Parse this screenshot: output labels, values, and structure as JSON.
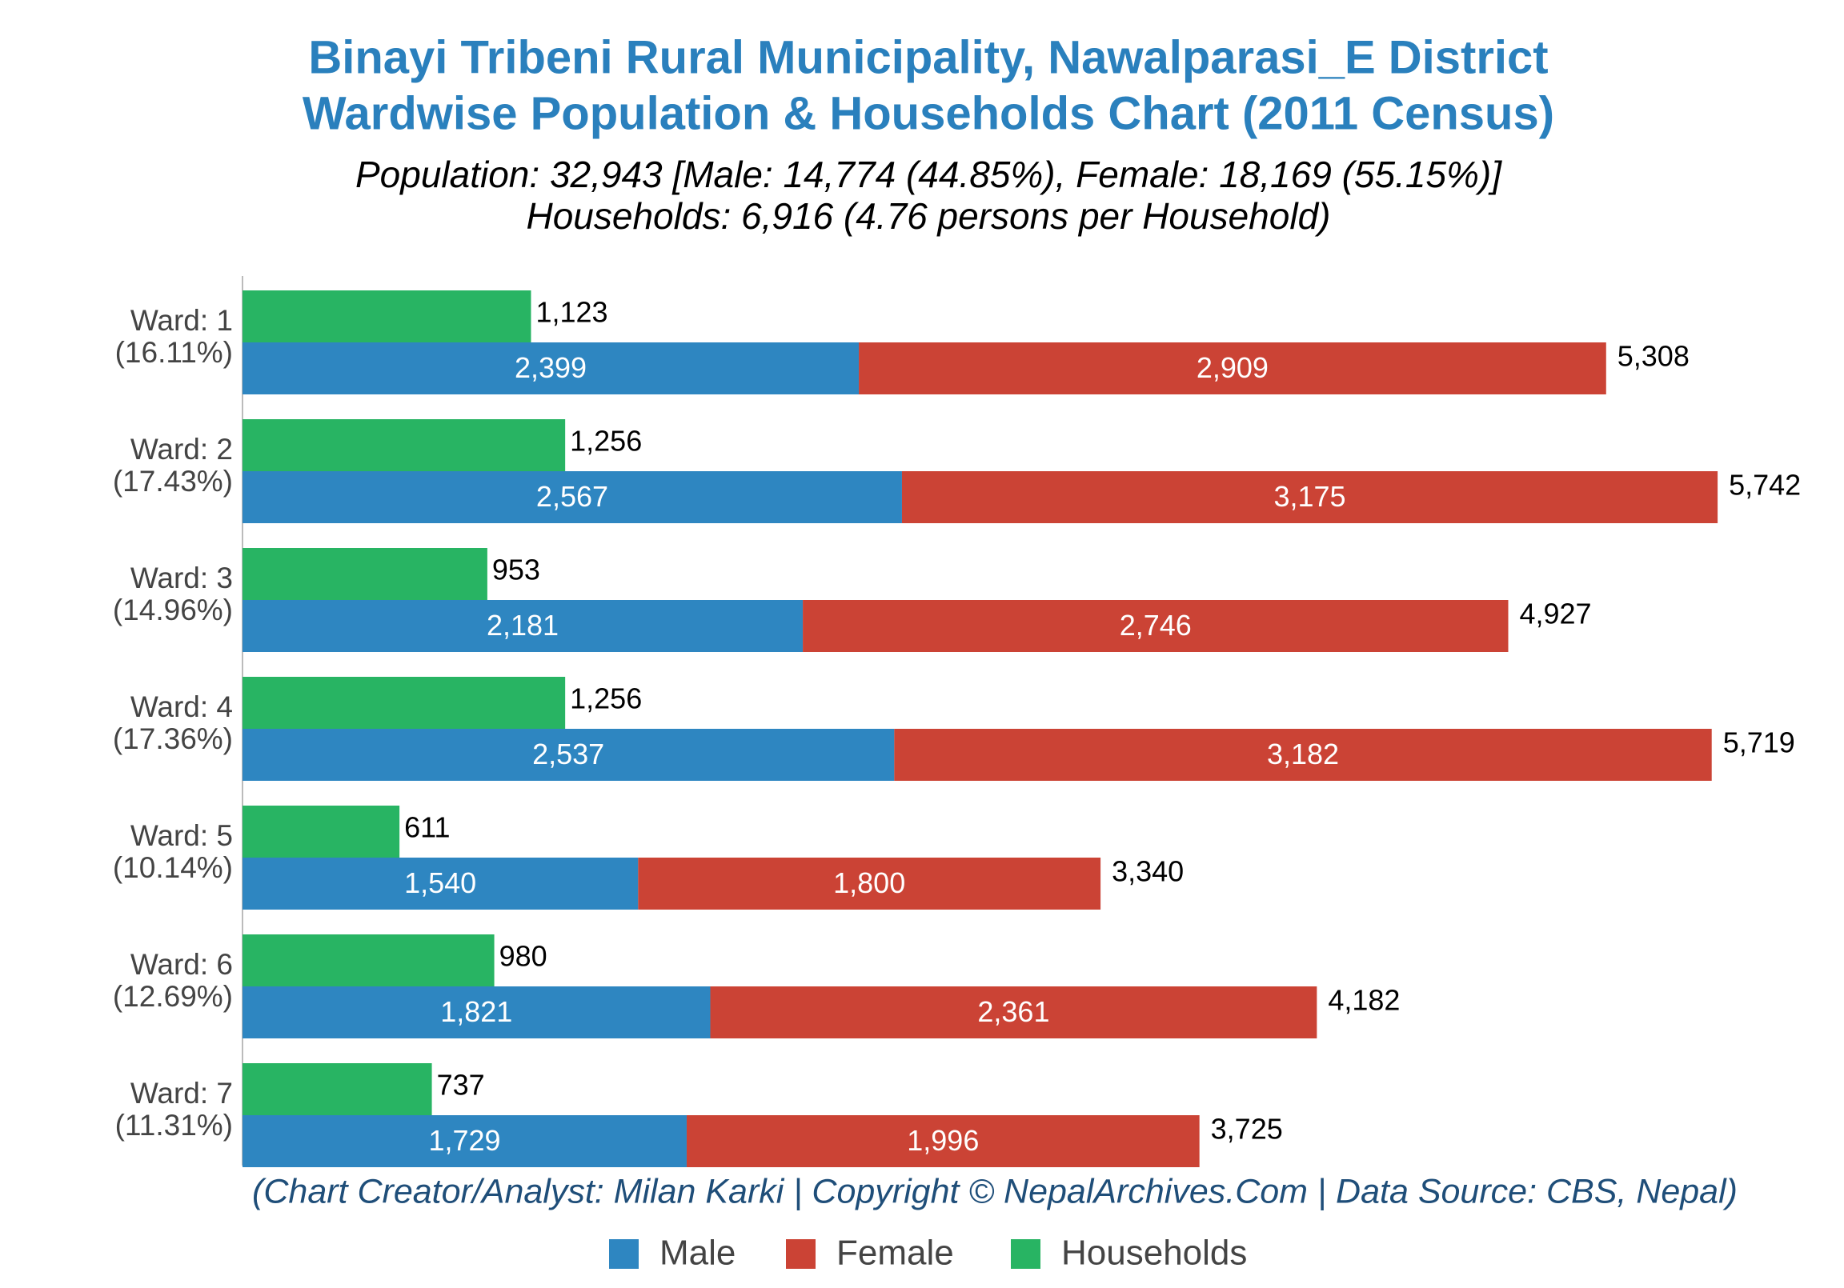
{
  "chart_data": {
    "type": "bar",
    "orientation": "horizontal",
    "title": "Binayi Tribeni Rural Municipality, Nawalparasi_E District",
    "title2": "Wardwise Population & Households Chart (2011 Census)",
    "subtitle": "Population: 32,943 [Male: 14,774 (44.85%), Female: 18,169 (55.15%)]",
    "subtitle2": "Households: 6,916 (4.76 persons per Household)",
    "credit": "(Chart Creator/Analyst: Milan Karki | Copyright © NepalArchives.Com | Data Source: CBS, Nepal)",
    "categories": [
      "Ward: 1",
      "Ward: 2",
      "Ward: 3",
      "Ward: 4",
      "Ward: 5",
      "Ward: 6",
      "Ward: 7"
    ],
    "category_shares": [
      "(16.11%)",
      "(17.43%)",
      "(14.96%)",
      "(17.36%)",
      "(10.14%)",
      "(12.69%)",
      "(11.31%)"
    ],
    "xlim": [
      0,
      6100
    ],
    "series": [
      {
        "name": "Male",
        "color": "#2e86c1",
        "stack": "population",
        "values": [
          2399,
          2567,
          2181,
          2537,
          1540,
          1821,
          1729
        ],
        "value_labels": [
          "2,399",
          "2,567",
          "2,181",
          "2,537",
          "1,540",
          "1,821",
          "1,729"
        ]
      },
      {
        "name": "Female",
        "color": "#cb4335",
        "stack": "population",
        "values": [
          2909,
          3175,
          2746,
          3182,
          1800,
          2361,
          1996
        ],
        "value_labels": [
          "2,909",
          "3,175",
          "2,746",
          "3,182",
          "1,800",
          "2,361",
          "1,996"
        ]
      },
      {
        "name": "Households",
        "color": "#28b463",
        "stack": "households",
        "values": [
          1123,
          1256,
          953,
          1256,
          611,
          980,
          737
        ],
        "value_labels": [
          "1,123",
          "1,256",
          "953",
          "1,256",
          "611",
          "980",
          "737"
        ]
      }
    ],
    "totals": [
      5308,
      5742,
      4927,
      5719,
      3340,
      4182,
      3725
    ],
    "total_labels": [
      "5,308",
      "5,742",
      "4,927",
      "5,719",
      "3,340",
      "4,182",
      "3,725"
    ],
    "legend": "bottom"
  }
}
